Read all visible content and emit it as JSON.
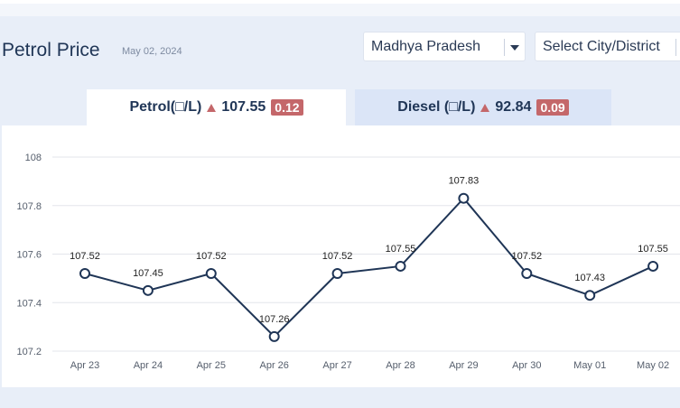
{
  "header": {
    "title": "Petrol Price",
    "date": "May 02, 2024"
  },
  "filters": {
    "state": "Madhya Pradesh",
    "city_placeholder": "Select City/District"
  },
  "tabs": [
    {
      "label": "Petrol(□/L)",
      "price": "107.55",
      "change": "0.12"
    },
    {
      "label": "Diesel (□/L)",
      "price": "92.84",
      "change": "0.09"
    }
  ],
  "colors": {
    "line": "#1f3556",
    "change_badge": "#c4676a",
    "tab_inactive": "#dbe5f7"
  },
  "chart_data": {
    "type": "line",
    "categories": [
      "Apr 23",
      "Apr 24",
      "Apr 25",
      "Apr 26",
      "Apr 27",
      "Apr 28",
      "Apr 29",
      "Apr 30",
      "May 01",
      "May 02"
    ],
    "series": [
      {
        "values": [
          107.52,
          107.45,
          107.52,
          107.26,
          107.52,
          107.55,
          107.83,
          107.52,
          107.43,
          107.55
        ]
      }
    ],
    "data_labels": [
      "107.52",
      "107.45",
      "107.52",
      "107.26",
      "107.52",
      "107.55",
      "107.83",
      "107.52",
      "107.43",
      "107.55"
    ],
    "yticks": [
      107.2,
      107.4,
      107.6,
      107.8,
      108
    ],
    "ytick_labels": [
      "107.2",
      "107.4",
      "107.6",
      "107.8",
      "108"
    ],
    "ylim": [
      107.2,
      108
    ],
    "grid": true
  }
}
